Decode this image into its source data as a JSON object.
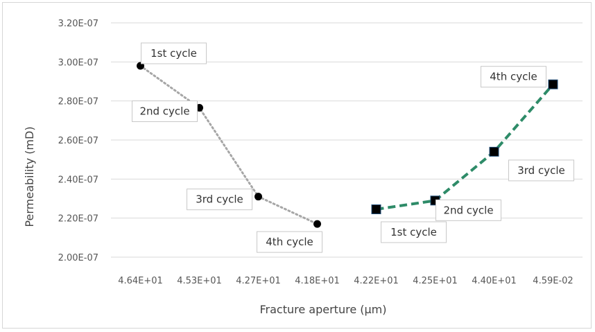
{
  "chart_data": {
    "type": "line",
    "xlabel": "Fracture aperture (μm)",
    "ylabel": "Permeability (mD)",
    "categories": [
      "4.64E+01",
      "4.53E+01",
      "4.27E+01",
      "4.18E+01",
      "4.22E+01",
      "4.25E+01",
      "4.40E+01",
      "4.59E-02"
    ],
    "y_ticks": [
      "2.00E-07",
      "2.20E-07",
      "2.40E-07",
      "2.60E-07",
      "2.80E-07",
      "3.00E-07",
      "3.20E-07"
    ],
    "ylim": [
      2e-07,
      3.2e-07
    ],
    "grid": true,
    "series": [
      {
        "marker": "circle",
        "line_style": "dotted",
        "color": "#a6a6a6",
        "marker_color": "#000000",
        "points": [
          {
            "category": "4.64E+01",
            "y": 2.98e-07,
            "label": "1st cycle"
          },
          {
            "category": "4.53E+01",
            "y": 2.765e-07,
            "label": "2nd cycle"
          },
          {
            "category": "4.27E+01",
            "y": 2.31e-07,
            "label": "3rd cycle"
          },
          {
            "category": "4.18E+01",
            "y": 2.17e-07,
            "label": "4th cycle"
          }
        ]
      },
      {
        "marker": "square",
        "line_style": "dashed",
        "color": "#2e8b68",
        "marker_color": "#000000",
        "points": [
          {
            "category": "4.22E+01",
            "y": 2.245e-07,
            "label": "1st cycle"
          },
          {
            "category": "4.25E+01",
            "y": 2.29e-07,
            "label": "2nd cycle"
          },
          {
            "category": "4.40E+01",
            "y": 2.54e-07,
            "label": "3rd cycle"
          },
          {
            "category": "4.59E-02",
            "y": 2.885e-07,
            "label": "4th cycle"
          }
        ]
      }
    ]
  }
}
